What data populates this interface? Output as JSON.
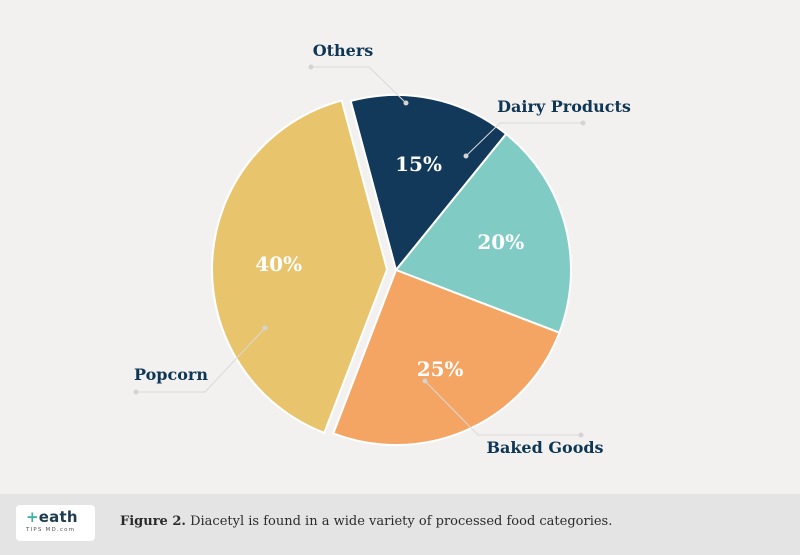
{
  "chart_data": {
    "type": "pie",
    "slices": [
      {
        "label": "Others",
        "value": 15,
        "value_label": "15%",
        "color": "#12395a"
      },
      {
        "label": "Dairy Products",
        "value": 20,
        "value_label": "20%",
        "color": "#80ccc4"
      },
      {
        "label": "Baked Goods",
        "value": 25,
        "value_label": "25%",
        "color": "#f4a564"
      },
      {
        "label": "Popcorn",
        "value": 40,
        "value_label": "40%",
        "color": "#e8c46c",
        "exploded": true
      }
    ],
    "start_angle_deg": -15,
    "direction": "clockwise",
    "label_color": "#0f3654",
    "background_color": "#f2f1f0"
  },
  "footer": {
    "logo": {
      "main": "eath",
      "plus": "+",
      "sub": "TIPS MD.com"
    },
    "caption_prefix": "Figure 2.",
    "caption_text": "Diacetyl is found in a wide variety of processed food categories."
  }
}
